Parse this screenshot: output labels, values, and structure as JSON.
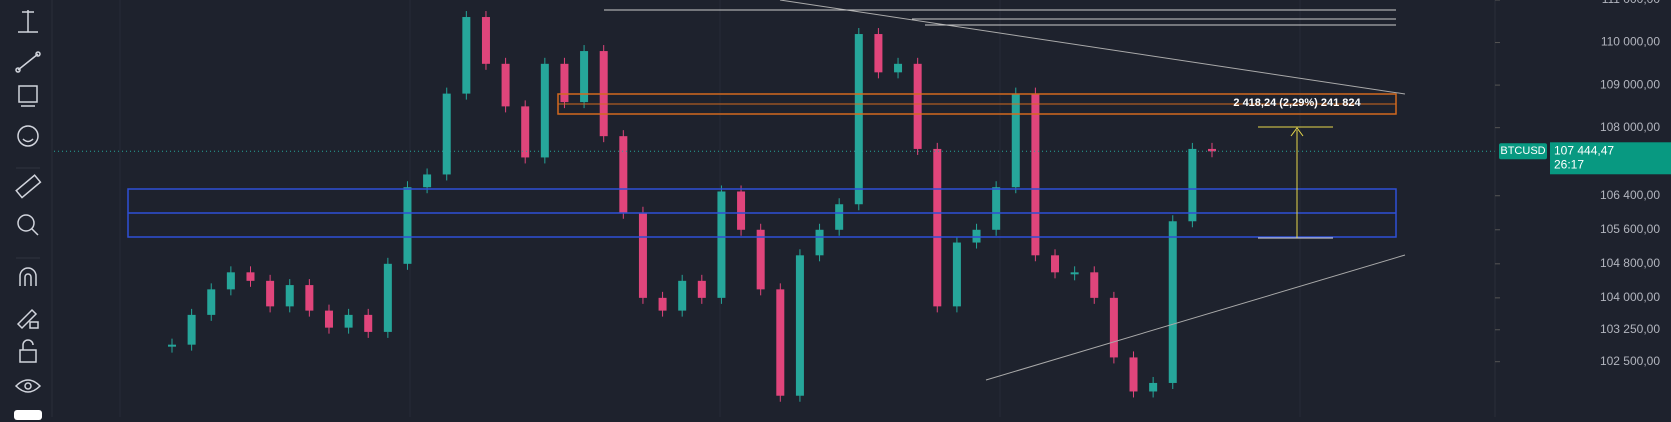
{
  "symbol": "BTCUSD",
  "current_price_label": "107 444,47",
  "countdown": "26:17",
  "measure_label": "2 418,24 (2,29%) 241 824",
  "chart": {
    "ylim": [
      101200,
      111000
    ],
    "yticks": [
      {
        "value": 111000,
        "label": "111 000,00"
      },
      {
        "value": 110000,
        "label": "110 000,00"
      },
      {
        "value": 109000,
        "label": "109 000,00"
      },
      {
        "value": 108000,
        "label": "108 000,00"
      },
      {
        "value": 106400,
        "label": "106 400,00"
      },
      {
        "value": 105600,
        "label": "105 600,00"
      },
      {
        "value": 104800,
        "label": "104 800,00"
      },
      {
        "value": 104000,
        "label": "104 000,00"
      },
      {
        "value": 103250,
        "label": "103 250,00"
      },
      {
        "value": 102500,
        "label": "102 500,00"
      }
    ],
    "current_price": 107444.47,
    "up_color": "#26a69a",
    "down_color": "#e0457b",
    "values": [
      102900,
      103600,
      104200,
      104600,
      104400,
      103800,
      104300,
      103700,
      103300,
      103600,
      103200,
      104800,
      106600,
      106900,
      108800,
      110600,
      109500,
      108500,
      107300,
      109500,
      108600,
      109800,
      107800,
      106000,
      104000,
      103700,
      104400,
      104000,
      106500,
      105600,
      104200,
      101700,
      105000,
      105600,
      106200,
      110200,
      109300,
      109500,
      107500,
      103800,
      105300,
      105600,
      106600,
      108800,
      105000,
      104600,
      104600,
      104000,
      102600,
      101800,
      102000,
      105800,
      107500,
      107444.47
    ]
  }
}
